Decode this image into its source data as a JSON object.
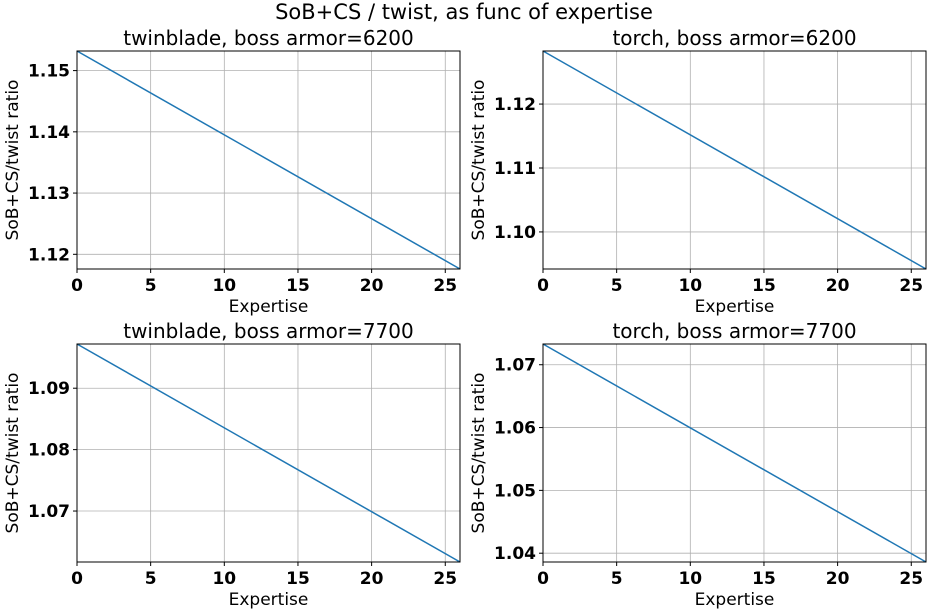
{
  "suptitle": "SoB+CS / twist, as func of expertise",
  "colors": {
    "series": "#1f77b4"
  },
  "chart_data": [
    {
      "type": "line",
      "title": "twinblade, boss armor=6200",
      "xlabel": "Expertise",
      "ylabel": "SoB+CS/twist ratio",
      "xlim": [
        0,
        26
      ],
      "ylim": [
        1.1176,
        1.1532
      ],
      "xticks": [
        0,
        5,
        10,
        15,
        20,
        25
      ],
      "yticks": [
        1.12,
        1.13,
        1.14,
        1.15
      ],
      "yticklabels": [
        "1.12",
        "1.13",
        "1.14",
        "1.15"
      ],
      "grid": true,
      "series": [
        {
          "x": [
            0,
            26
          ],
          "y": [
            1.1532,
            1.1176
          ]
        }
      ]
    },
    {
      "type": "line",
      "title": "torch, boss armor=6200",
      "xlabel": "Expertise",
      "ylabel": "SoB+CS/twist ratio",
      "xlim": [
        0,
        26
      ],
      "ylim": [
        1.0942,
        1.1283
      ],
      "xticks": [
        0,
        5,
        10,
        15,
        20,
        25
      ],
      "yticks": [
        1.1,
        1.11,
        1.12
      ],
      "yticklabels": [
        "1.10",
        "1.11",
        "1.12"
      ],
      "grid": true,
      "series": [
        {
          "x": [
            0,
            26
          ],
          "y": [
            1.1283,
            1.0942
          ]
        }
      ]
    },
    {
      "type": "line",
      "title": "twinblade, boss armor=7700",
      "xlabel": "Expertise",
      "ylabel": "SoB+CS/twist ratio",
      "xlim": [
        0,
        26
      ],
      "ylim": [
        1.0617,
        1.0972
      ],
      "xticks": [
        0,
        5,
        10,
        15,
        20,
        25
      ],
      "yticks": [
        1.07,
        1.08,
        1.09
      ],
      "yticklabels": [
        "1.07",
        "1.08",
        "1.09"
      ],
      "grid": true,
      "series": [
        {
          "x": [
            0,
            26
          ],
          "y": [
            1.0972,
            1.0617
          ]
        }
      ]
    },
    {
      "type": "line",
      "title": "torch, boss armor=7700",
      "xlabel": "Expertise",
      "ylabel": "SoB+CS/twist ratio",
      "xlim": [
        0,
        26
      ],
      "ylim": [
        1.0386,
        1.0733
      ],
      "xticks": [
        0,
        5,
        10,
        15,
        20,
        25
      ],
      "yticks": [
        1.04,
        1.05,
        1.06,
        1.07
      ],
      "yticklabels": [
        "1.04",
        "1.05",
        "1.06",
        "1.07"
      ],
      "grid": true,
      "series": [
        {
          "x": [
            0,
            26
          ],
          "y": [
            1.0733,
            1.0386
          ]
        }
      ]
    }
  ]
}
